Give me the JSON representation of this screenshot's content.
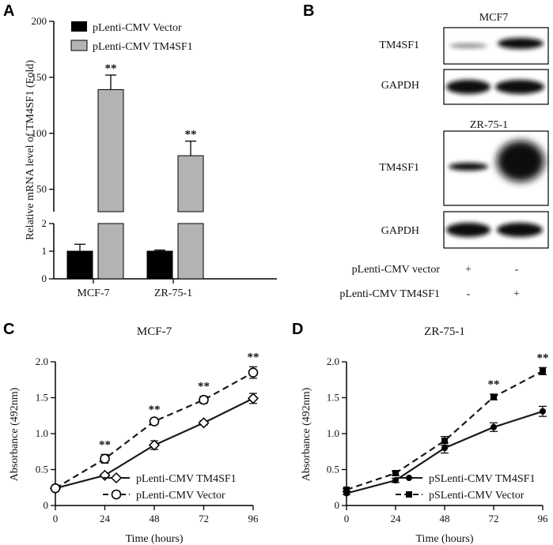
{
  "panels": {
    "a": "A",
    "b": "B",
    "c": "C",
    "d": "D"
  },
  "colors": {
    "vector": "#000000",
    "tm4sf1": "#b3b3b3",
    "line": "#1a1a1a"
  },
  "chart_data": [
    {
      "id": "A",
      "type": "bar",
      "categories": [
        "MCF-7",
        "ZR-75-1"
      ],
      "series": [
        {
          "name": "pLenti-CMV Vector",
          "values": [
            1.0,
            1.0
          ],
          "errors": [
            0.25,
            0.04
          ]
        },
        {
          "name": "pLenti-CMV TM4SF1",
          "values": [
            139,
            80
          ],
          "errors": [
            13,
            13
          ]
        }
      ],
      "ylabel": "Relative mRNA level of TM4SF1 (Fold)",
      "lower_ylim": [
        0,
        2
      ],
      "lower_ticks": [
        "0",
        "1",
        "2"
      ],
      "upper_ylim": [
        30,
        200
      ],
      "upper_ticks": [
        "50",
        "100",
        "150",
        "200"
      ],
      "annotations": [
        "**",
        "**"
      ]
    },
    {
      "id": "C",
      "type": "line",
      "title": "MCF-7",
      "xlabel": "Time (hours)",
      "ylabel": "Absorbance (492nm)",
      "x": [
        0,
        24,
        48,
        72,
        96
      ],
      "x_ticks": [
        "0",
        "24",
        "48",
        "72",
        "96"
      ],
      "ylim": [
        0,
        2.0
      ],
      "y_ticks": [
        "0",
        "0.5",
        "1.0",
        "1.5",
        "2.0"
      ],
      "series": [
        {
          "name": "pLenti-CMV TM4SF1",
          "values": [
            0.24,
            0.42,
            0.84,
            1.15,
            1.49
          ],
          "errors": [
            0.02,
            0.02,
            0.06,
            0.03,
            0.07
          ],
          "marker": "diamond",
          "dash": false
        },
        {
          "name": "pLenti-CMV Vector",
          "values": [
            0.24,
            0.65,
            1.17,
            1.47,
            1.85
          ],
          "errors": [
            0.02,
            0.06,
            0.03,
            0.05,
            0.08
          ],
          "marker": "circle",
          "dash": true
        }
      ],
      "annotations": [
        "**",
        "**",
        "**",
        "**"
      ],
      "annotation_x": [
        24,
        48,
        72,
        96
      ]
    },
    {
      "id": "D",
      "type": "line",
      "title": "ZR-75-1",
      "xlabel": "Time (hours)",
      "ylabel": "Absorbance (492nm)",
      "x": [
        0,
        24,
        48,
        72,
        96
      ],
      "x_ticks": [
        "0",
        "24",
        "48",
        "72",
        "96"
      ],
      "ylim": [
        0,
        2.0
      ],
      "y_ticks": [
        "0",
        "0.5",
        "1.0",
        "1.5",
        "2.0"
      ],
      "series": [
        {
          "name": "pSLenti-CMV TM4SF1",
          "values": [
            0.17,
            0.35,
            0.8,
            1.09,
            1.31
          ],
          "errors": [
            0.02,
            0.03,
            0.07,
            0.06,
            0.07
          ],
          "marker": "dot",
          "dash": false
        },
        {
          "name": "pSLenti-CMV Vector",
          "values": [
            0.22,
            0.45,
            0.9,
            1.51,
            1.87
          ],
          "errors": [
            0.02,
            0.03,
            0.06,
            0.04,
            0.05
          ],
          "marker": "square",
          "dash": true
        }
      ],
      "annotations": [
        "**",
        "**"
      ],
      "annotation_x": [
        72,
        96
      ]
    }
  ],
  "western_blot": {
    "top_title": "MCF7",
    "bottom_title": "ZR-75-1",
    "row_labels": [
      "TM4SF1",
      "GAPDH",
      "TM4SF1",
      "GAPDH"
    ],
    "conditions": [
      {
        "label": "pLenti-CMV vector",
        "lane1": "+",
        "lane2": "-"
      },
      {
        "label": "pLenti-CMV TM4SF1",
        "lane1": "-",
        "lane2": "+"
      }
    ]
  }
}
